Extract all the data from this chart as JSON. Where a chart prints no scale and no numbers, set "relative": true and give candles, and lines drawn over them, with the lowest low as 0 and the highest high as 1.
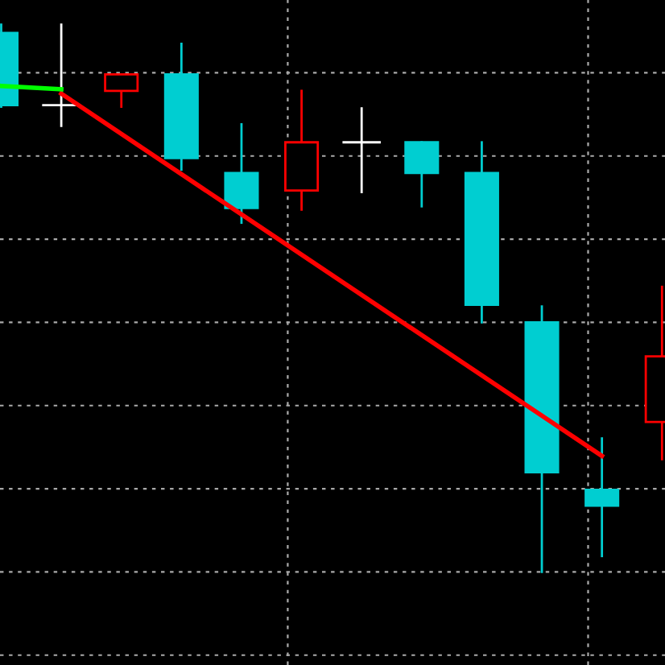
{
  "chart_data": {
    "type": "candlestick",
    "relative": true,
    "grid": true,
    "categories": [
      null,
      null,
      null,
      null,
      null,
      null,
      null,
      null,
      null,
      null,
      null,
      null
    ],
    "ohlc": [
      [
        0.985,
        1.0,
        0.85,
        0.853
      ],
      [
        0.853,
        1.0,
        0.815,
        0.853
      ],
      [
        0.879,
        0.909,
        0.85,
        0.909
      ],
      [
        0.909,
        0.965,
        0.735,
        0.756
      ],
      [
        0.729,
        0.818,
        0.638,
        0.665
      ],
      [
        0.697,
        0.879,
        0.662,
        0.785
      ],
      [
        0.785,
        0.847,
        0.694,
        0.785
      ],
      [
        0.785,
        0.785,
        0.668,
        0.729
      ],
      [
        0.729,
        0.785,
        0.456,
        0.488
      ],
      [
        0.456,
        0.485,
        0.0,
        0.182
      ],
      [
        0.15,
        0.244,
        0.029,
        0.121
      ],
      [
        0.274,
        0.521,
        0.206,
        0.394
      ]
    ],
    "colors": [
      "#00ced1",
      "#ffffff",
      "#ff0000",
      "#00ced1",
      "#00ced1",
      "#ff0000",
      "#ffffff",
      "#00ced1",
      "#00ced1",
      "#00ced1",
      "#00ced1",
      "#ff0000"
    ],
    "series": [
      {
        "type": "line",
        "color": "#ff0000",
        "values": [
          null,
          0.874,
          null,
          null,
          null,
          null,
          null,
          null,
          null,
          null,
          0.212,
          null
        ]
      },
      {
        "type": "line",
        "color": "#00ff00",
        "values": [
          0.888,
          0.882,
          null,
          null,
          null,
          null,
          null,
          null,
          null,
          null,
          null,
          null
        ]
      }
    ]
  }
}
